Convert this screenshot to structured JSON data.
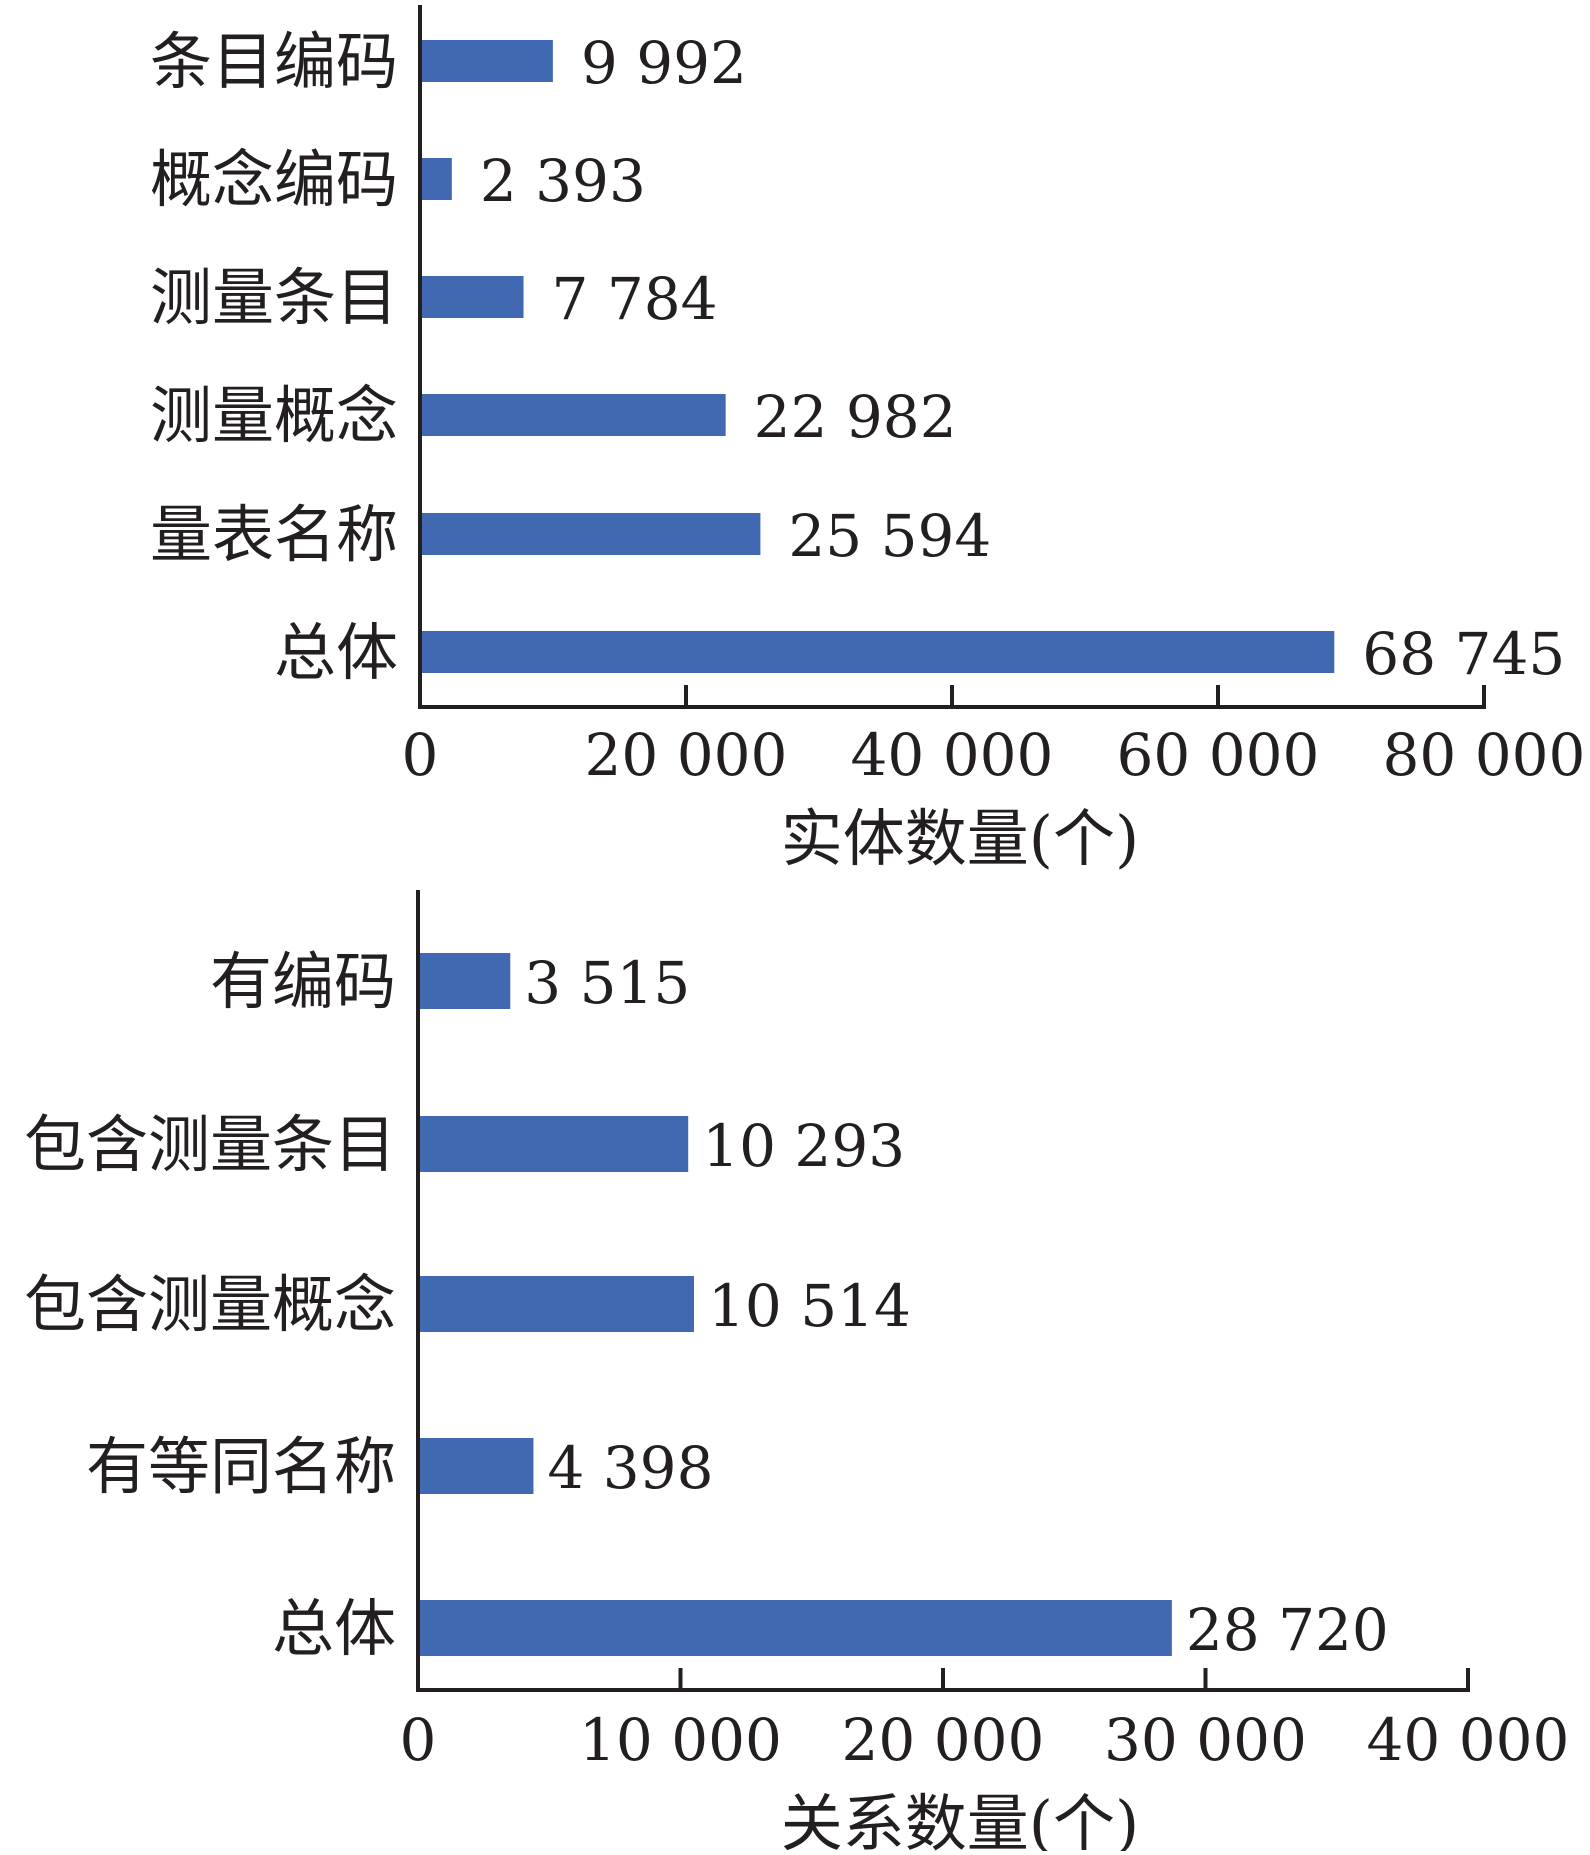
{
  "chart_data": [
    {
      "type": "bar",
      "orientation": "horizontal",
      "categories": [
        "条目编码",
        "概念编码",
        "测量条目",
        "测量概念",
        "量表名称",
        "总体"
      ],
      "values": [
        9992,
        2393,
        7784,
        22982,
        25594,
        68745
      ],
      "value_labels": [
        "9 992",
        "2 393",
        "7 784",
        "22 982",
        "25 594",
        "68 745"
      ],
      "xlabel": "实体数量(个)",
      "ylabel": "",
      "xlim": [
        0,
        80000
      ],
      "xticks": [
        0,
        20000,
        40000,
        60000,
        80000
      ],
      "xtick_labels": [
        "0",
        "20 000",
        "40 000",
        "60 000",
        "80 000"
      ],
      "grid": false,
      "color": "#4169b1"
    },
    {
      "type": "bar",
      "orientation": "horizontal",
      "categories": [
        "有编码",
        "包含测量条目",
        "包含测量概念",
        "有等同名称",
        "总体"
      ],
      "values": [
        3515,
        10293,
        10514,
        4398,
        28720
      ],
      "value_labels": [
        "3 515",
        "10 293",
        "10 514",
        "4 398",
        "28 720"
      ],
      "xlabel": "关系数量(个)",
      "ylabel": "",
      "xlim": [
        0,
        40000
      ],
      "xticks": [
        0,
        10000,
        20000,
        30000,
        40000
      ],
      "xtick_labels": [
        "0",
        "10 000",
        "20 000",
        "30 000",
        "40 000"
      ],
      "grid": false,
      "color": "#4169b1"
    }
  ]
}
